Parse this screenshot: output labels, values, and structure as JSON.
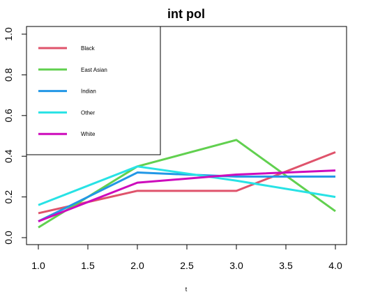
{
  "chart_data": {
    "type": "line",
    "title": "int pol",
    "xlabel": "t",
    "ylabel": "",
    "x": [
      1,
      2,
      3,
      4
    ],
    "xlim": [
      1,
      4
    ],
    "ylim": [
      0,
      1
    ],
    "x_ticks": [
      "1.0",
      "1.5",
      "2.0",
      "2.5",
      "3.0",
      "3.5",
      "4.0"
    ],
    "y_ticks": [
      "0.0",
      "0.2",
      "0.4",
      "0.6",
      "0.8",
      "1.0"
    ],
    "grid": false,
    "legend_position": "top-left",
    "series": [
      {
        "name": "Black",
        "color": "#DF536B",
        "values": [
          0.12,
          0.23,
          0.23,
          0.42
        ]
      },
      {
        "name": "East Asian",
        "color": "#61D04F",
        "values": [
          0.05,
          0.35,
          0.48,
          0.13
        ]
      },
      {
        "name": "Indian",
        "color": "#2297E6",
        "values": [
          0.08,
          0.32,
          0.3,
          0.3
        ]
      },
      {
        "name": "Other",
        "color": "#28E2E5",
        "values": [
          0.16,
          0.35,
          0.28,
          0.2
        ]
      },
      {
        "name": "White",
        "color": "#CD0BBC",
        "values": [
          0.08,
          0.27,
          0.31,
          0.33
        ]
      }
    ]
  }
}
